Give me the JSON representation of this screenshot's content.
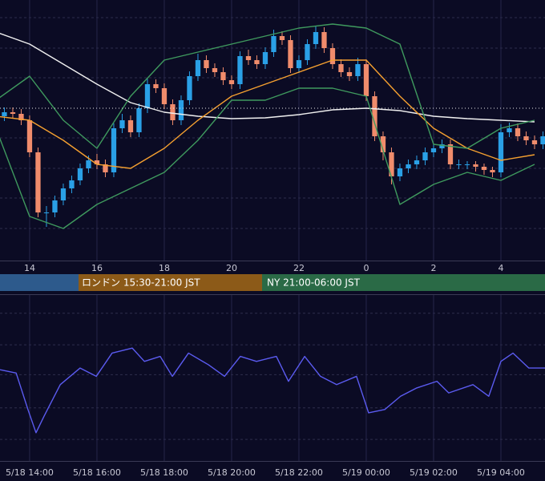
{
  "chart_data": [
    {
      "type": "candlestick",
      "x": [
        13.25,
        13.5,
        13.75,
        14,
        14.25,
        14.5,
        14.75,
        15,
        15.25,
        15.5,
        15.75,
        16,
        16.25,
        16.5,
        16.75,
        17,
        17.25,
        17.5,
        17.75,
        18,
        18.25,
        18.5,
        18.75,
        19,
        19.25,
        19.5,
        19.75,
        20,
        20.25,
        20.5,
        20.75,
        21,
        21.25,
        21.5,
        21.75,
        22,
        22.25,
        22.5,
        22.75,
        23,
        23.25,
        23.5,
        23.75,
        24,
        24.25,
        24.5,
        24.75,
        25,
        25.25,
        25.5,
        25.75,
        26,
        26.25,
        26.5,
        26.75,
        27,
        27.25,
        27.5,
        27.75,
        28,
        28.25,
        28.5,
        28.75,
        29,
        29.25
      ],
      "open": [
        180,
        185,
        183,
        175,
        135,
        60,
        60,
        75,
        90,
        100,
        115,
        125,
        120,
        110,
        165,
        175,
        160,
        190,
        220,
        215,
        195,
        175,
        200,
        230,
        250,
        240,
        235,
        225,
        220,
        255,
        250,
        245,
        260,
        280,
        275,
        240,
        250,
        270,
        285,
        265,
        245,
        235,
        230,
        245,
        205,
        155,
        135,
        105,
        115,
        120,
        125,
        135,
        140,
        145,
        120,
        120,
        120,
        117,
        113,
        110,
        160,
        165,
        155,
        150,
        145
      ],
      "high": [
        191,
        191,
        189,
        181,
        141,
        68,
        81,
        96,
        106,
        121,
        131,
        133,
        126,
        171,
        183,
        181,
        196,
        228,
        226,
        221,
        201,
        206,
        236,
        258,
        256,
        246,
        241,
        231,
        261,
        263,
        256,
        266,
        288,
        286,
        281,
        256,
        276,
        293,
        291,
        271,
        251,
        241,
        253,
        251,
        211,
        161,
        141,
        121,
        126,
        131,
        141,
        146,
        151,
        151,
        126,
        124,
        124,
        121,
        117,
        170,
        172,
        171,
        161,
        156,
        161
      ],
      "low": [
        174,
        177,
        169,
        129,
        54,
        42,
        54,
        69,
        84,
        94,
        109,
        114,
        104,
        104,
        159,
        154,
        154,
        184,
        209,
        189,
        169,
        169,
        194,
        224,
        234,
        229,
        219,
        214,
        214,
        244,
        239,
        239,
        254,
        269,
        234,
        234,
        244,
        264,
        259,
        239,
        229,
        224,
        224,
        199,
        149,
        125,
        95,
        99,
        109,
        114,
        119,
        129,
        134,
        114,
        114,
        114,
        111,
        107,
        104,
        104,
        154,
        149,
        144,
        139,
        139
      ],
      "close": [
        185,
        183,
        175,
        135,
        60,
        60,
        75,
        90,
        100,
        115,
        125,
        120,
        110,
        165,
        175,
        160,
        190,
        220,
        215,
        195,
        175,
        200,
        230,
        250,
        240,
        235,
        225,
        220,
        255,
        250,
        245,
        260,
        280,
        275,
        240,
        250,
        270,
        285,
        265,
        245,
        235,
        230,
        245,
        205,
        155,
        135,
        105,
        115,
        120,
        125,
        135,
        140,
        145,
        120,
        120,
        120,
        117,
        113,
        110,
        160,
        165,
        155,
        150,
        145,
        155
      ],
      "up_color": "#2aa0e6",
      "down_color": "#f08c6c",
      "series": [
        {
          "color": "#f0f0f0",
          "x": [
            13,
            14,
            15,
            16,
            17,
            18,
            19,
            20,
            21,
            22,
            23,
            24,
            25,
            26,
            27,
            28,
            29
          ],
          "values": [
            285,
            270,
            245,
            220,
            197,
            185,
            180,
            177,
            178,
            182,
            188,
            190,
            187,
            180,
            177,
            175,
            173
          ]
        },
        {
          "color": "#f5a030",
          "x": [
            13,
            14,
            15,
            16,
            17,
            18,
            19,
            20,
            21,
            22,
            23,
            24,
            25,
            26,
            27,
            28,
            29
          ],
          "values": [
            180,
            175,
            150,
            120,
            115,
            140,
            175,
            205,
            220,
            235,
            250,
            250,
            205,
            165,
            140,
            125,
            132
          ]
        },
        {
          "color": "#3f9a5e",
          "x": [
            13,
            14,
            15,
            16,
            17,
            18,
            19,
            20,
            21,
            22,
            23,
            24,
            25,
            26,
            27,
            28,
            29
          ],
          "values": [
            200,
            230,
            175,
            140,
            205,
            250,
            260,
            270,
            280,
            290,
            295,
            290,
            270,
            145,
            140,
            165,
            175
          ]
        },
        {
          "color": "#3f9a5e",
          "x": [
            13,
            14,
            15,
            16,
            17,
            18,
            19,
            20,
            21,
            22,
            23,
            24,
            25,
            26,
            27,
            28,
            29
          ],
          "values": [
            165,
            55,
            40,
            70,
            90,
            110,
            150,
            200,
            200,
            215,
            215,
            205,
            70,
            95,
            110,
            100,
            120
          ]
        }
      ],
      "price_line": 190,
      "xlim": [
        13.12,
        29.31
      ],
      "ylim": [
        0,
        325
      ],
      "xticks": [
        14,
        16,
        18,
        20,
        22,
        {
          "value": 24,
          "label": "0"
        },
        {
          "value": 26,
          "label": "2"
        },
        {
          "value": 28,
          "label": "4"
        }
      ],
      "yticks": [
        40,
        78,
        115,
        153,
        228,
        265,
        303
      ],
      "grid": true
    },
    {
      "type": "line",
      "series": [
        {
          "color": "#5b5bf0",
          "x": [
            13.12,
            13.6,
            13.95,
            14.19,
            14.43,
            14.91,
            15.5,
            15.98,
            16.45,
            17.05,
            17.41,
            17.88,
            18.24,
            18.72,
            19.31,
            19.79,
            20.26,
            20.74,
            21.33,
            21.69,
            22.17,
            22.64,
            23.12,
            23.71,
            24.07,
            24.55,
            25.02,
            25.5,
            26.1,
            26.45,
            27.17,
            27.64,
            28,
            28.36,
            28.83,
            29.31
          ],
          "values": [
            55,
            53,
            31,
            17,
            27,
            46,
            56,
            51,
            65,
            68,
            60,
            63,
            51,
            65,
            58,
            51,
            63,
            60,
            63,
            48,
            63,
            51,
            46,
            51,
            29,
            31,
            39,
            44,
            48,
            41,
            46,
            39,
            60,
            65,
            56,
            56
          ]
        }
      ],
      "xlim": [
        13.12,
        29.31
      ],
      "ylim": [
        0,
        100
      ],
      "xticks": [
        {
          "value": 14,
          "label": "5/18 14:00"
        },
        {
          "value": 16,
          "label": "5/18 16:00"
        },
        {
          "value": 18,
          "label": "5/18 18:00"
        },
        {
          "value": 20,
          "label": "5/18 20:00"
        },
        {
          "value": 22,
          "label": "5/18 22:00"
        },
        {
          "value": 24,
          "label": "5/19 00:00"
        },
        {
          "value": 26,
          "label": "5/19 02:00"
        },
        {
          "value": 28,
          "label": "5/19 04:00"
        }
      ],
      "yticks": [
        13,
        32,
        52,
        70,
        89
      ],
      "grid": true
    }
  ],
  "sessions": [
    "ロンドン 15:30-21:00 JST",
    "NY 21:00-06:00 JST"
  ]
}
